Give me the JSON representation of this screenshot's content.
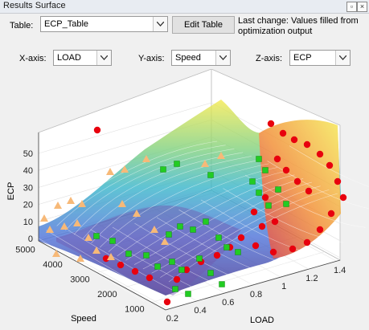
{
  "window": {
    "title": "Results Surface"
  },
  "toolbar": {
    "table_label": "Table:",
    "table_value": "ECP_Table",
    "edit_button": "Edit Table",
    "status_text": "Last change: Values filled from optimization output"
  },
  "axes_selectors": {
    "x_label": "X-axis:",
    "x_value": "LOAD",
    "y_label": "Y-axis:",
    "y_value": "Speed",
    "z_label": "Z-axis:",
    "z_value": "ECP"
  },
  "chart_data": {
    "type": "surface3d",
    "x_axis": {
      "label": "LOAD",
      "ticks": [
        "0.2",
        "0.4",
        "0.6",
        "0.8",
        "1",
        "1.2",
        "1.4"
      ]
    },
    "y_axis": {
      "label": "Speed",
      "ticks": [
        "1000",
        "2000",
        "3000",
        "4000",
        "5000"
      ]
    },
    "z_axis": {
      "label": "ECP",
      "ticks": [
        "0",
        "10",
        "20",
        "30",
        "40",
        "50"
      ]
    },
    "grid": true,
    "colormap": [
      "#3b2a8a",
      "#4a6fd8",
      "#33b3c9",
      "#7fd17a",
      "#f5e94a"
    ],
    "marker_series": [
      {
        "marker": "circle",
        "color": "#e8000e"
      },
      {
        "marker": "triangle",
        "color": "#f7b978"
      },
      {
        "marker": "square",
        "color": "#22cc22"
      }
    ]
  }
}
